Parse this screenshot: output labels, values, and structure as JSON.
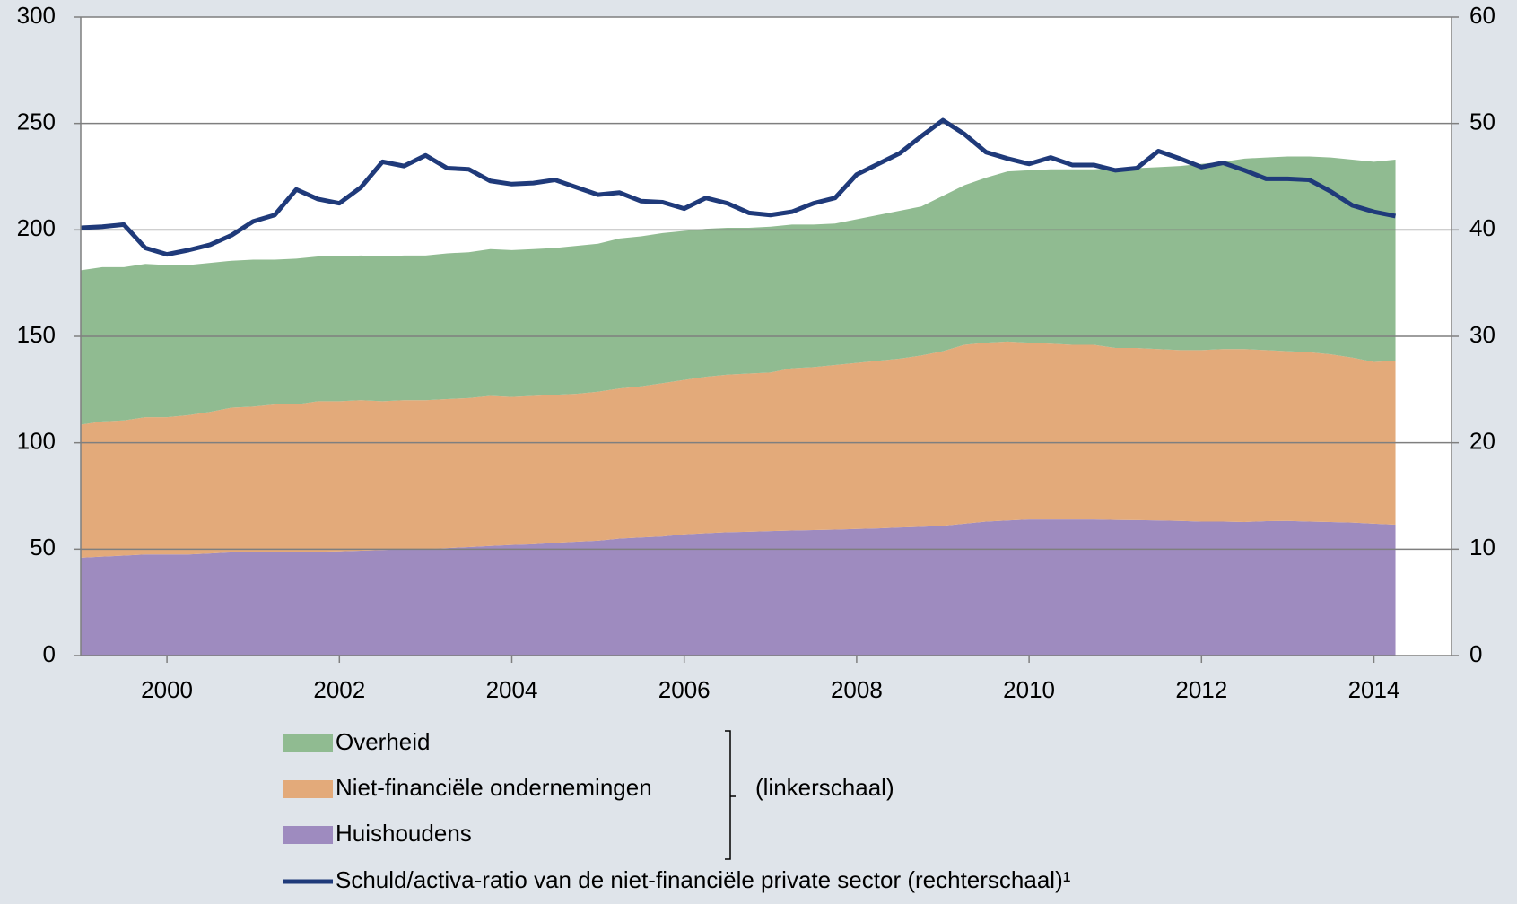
{
  "chart_data": {
    "type": "stacked-area-line",
    "x": [
      1999,
      1999.25,
      1999.5,
      1999.75,
      2000,
      2000.25,
      2000.5,
      2000.75,
      2001,
      2001.25,
      2001.5,
      2001.75,
      2002,
      2002.25,
      2002.5,
      2002.75,
      2003,
      2003.25,
      2003.5,
      2003.75,
      2004,
      2004.25,
      2004.5,
      2004.75,
      2005,
      2005.25,
      2005.5,
      2005.75,
      2006,
      2006.25,
      2006.5,
      2006.75,
      2007,
      2007.25,
      2007.5,
      2007.75,
      2008,
      2008.25,
      2008.5,
      2008.75,
      2009,
      2009.25,
      2009.5,
      2009.75,
      2010,
      2010.25,
      2010.5,
      2010.75,
      2011,
      2011.25,
      2011.5,
      2011.75,
      2012,
      2012.25,
      2012.5,
      2012.75,
      2013,
      2013.25,
      2013.5,
      2013.75,
      2014,
      2014.25
    ],
    "xlim": [
      1999,
      2014.9
    ],
    "xticks": [
      2000,
      2002,
      2004,
      2006,
      2008,
      2010,
      2012,
      2014
    ],
    "ylim": [
      0,
      300
    ],
    "yticks": [
      0,
      50,
      100,
      150,
      200,
      250,
      300
    ],
    "y2lim": [
      0,
      60
    ],
    "y2ticks": [
      0,
      10,
      20,
      30,
      40,
      50,
      60
    ],
    "grid": true,
    "annotation": "(linkerschaal)",
    "series": [
      {
        "name": "Huishoudens",
        "color": "#9e8bbf",
        "values": [
          46,
          46.5,
          47,
          47.5,
          47.5,
          47.5,
          48,
          48.5,
          48.5,
          48.5,
          48.5,
          48.8,
          49,
          49.3,
          49.6,
          50,
          50,
          50.5,
          51,
          51.5,
          52,
          52.3,
          53,
          53.5,
          54,
          55,
          55.5,
          56,
          57,
          57.5,
          58,
          58.2,
          58.5,
          58.8,
          59,
          59.2,
          59.5,
          59.8,
          60.2,
          60.5,
          61,
          62,
          63,
          63.5,
          64,
          64,
          64,
          64,
          63.8,
          63.7,
          63.5,
          63.3,
          63,
          63,
          62.8,
          63.2,
          63.3,
          63,
          62.8,
          62.5,
          62,
          61.5
        ]
      },
      {
        "name": "Niet-financiële ondernemingen",
        "color": "#e3aa7a",
        "values": [
          62.5,
          63.5,
          63.5,
          64.5,
          64.5,
          65.5,
          66.5,
          68,
          68.5,
          69.5,
          69.5,
          70.7,
          70.5,
          70.7,
          69.9,
          70,
          70,
          70,
          70,
          70.5,
          69.5,
          69.7,
          69.5,
          69.5,
          70,
          70.5,
          71,
          72,
          72.5,
          73.5,
          74,
          74.3,
          74.5,
          76.2,
          76.5,
          77.3,
          78,
          78.7,
          79.3,
          80.5,
          82,
          84,
          84,
          84,
          83,
          82.5,
          82,
          82,
          80.7,
          80.8,
          80.5,
          80.2,
          80.5,
          81,
          81.2,
          80.3,
          79.7,
          79.5,
          78.7,
          77.5,
          76,
          77
        ]
      },
      {
        "name": "Overheid",
        "color": "#90bb91",
        "values": [
          72.5,
          72.5,
          72,
          72,
          71.5,
          70.5,
          70,
          69,
          69,
          68,
          68.5,
          68,
          68,
          68,
          68,
          68,
          68,
          68.5,
          68.5,
          69,
          69,
          69,
          69,
          69.5,
          69.5,
          70.5,
          70.5,
          70.5,
          70,
          69.5,
          69,
          68.5,
          68.5,
          67.5,
          67,
          66.5,
          67.5,
          68.5,
          69.5,
          70,
          73,
          75,
          77.5,
          80,
          81,
          82,
          82.5,
          82.5,
          84.5,
          84.5,
          85.5,
          86.5,
          87.5,
          88,
          89.5,
          90.5,
          91.5,
          92,
          92.5,
          93,
          94,
          94.5
        ]
      },
      {
        "name": "Schuld/activa-ratio van de niet-financiële private sector (rechterschaal)¹",
        "color": "#1f3a7a",
        "axis": "y2",
        "values": [
          40.2,
          40.3,
          40.5,
          38.3,
          37.7,
          38.1,
          38.6,
          39.5,
          40.8,
          41.4,
          43.8,
          42.9,
          42.5,
          44,
          46.4,
          46,
          47,
          45.8,
          45.7,
          44.6,
          44.3,
          44.4,
          44.7,
          44.0,
          43.3,
          43.5,
          42.7,
          42.6,
          42.0,
          43.0,
          42.5,
          41.6,
          41.4,
          41.7,
          42.5,
          43.0,
          45.2,
          46.2,
          47.2,
          48.8,
          50.3,
          49.0,
          47.3,
          46.7,
          46.2,
          46.8,
          46.1,
          46.1,
          45.6,
          45.8,
          47.4,
          46.7,
          45.9,
          46.3,
          45.6,
          44.8,
          44.8,
          44.7,
          43.6,
          42.3,
          41.7,
          41.3
        ]
      }
    ]
  }
}
